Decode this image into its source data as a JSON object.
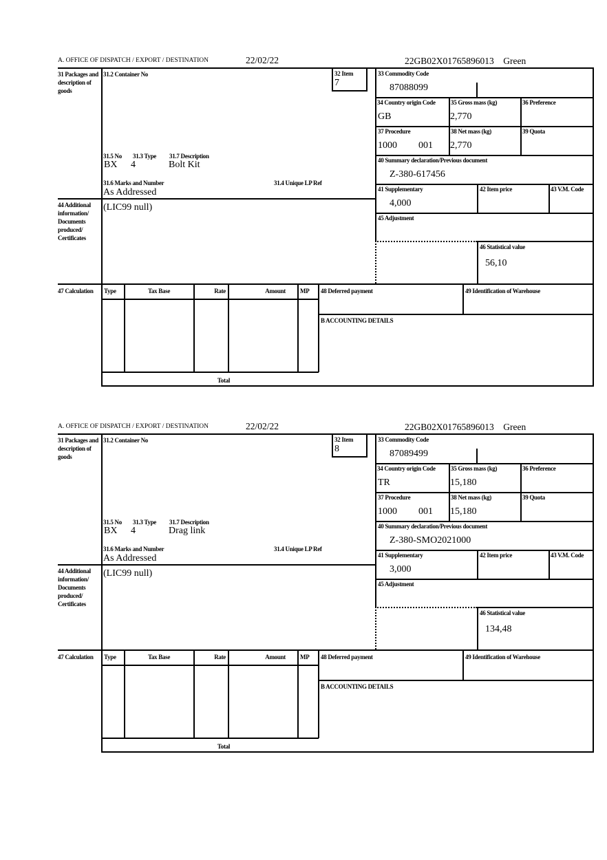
{
  "labels": {
    "office": "A.  OFFICE OF DISPATCH / EXPORT / DESTINATION",
    "l31": "31 Packages and description of goods",
    "l31_2": "31.2 Container No",
    "l32": "32 Item",
    "l33": "33 Commodity Code",
    "l34": "34 Country origin Code",
    "l35": "35 Gross mass (kg)",
    "l36": "36 Preference",
    "l37": "37 Procedure",
    "l38": "38 Net mass (kg)",
    "l39": "39 Quota",
    "l40": "40 Summary declaration/Previous document",
    "l41": "41 Supplementary",
    "l42": "42 Item price",
    "l43": "43 V.M. Code",
    "l45": "45 Adjustment",
    "l46": "46 Statistical value",
    "l31_5": "31.5 No",
    "l31_3": "31.3 Type",
    "l31_7": "31.7 Description",
    "l31_6": "31.6 Marks and Number",
    "l31_4": "31.4 Unique LP Ref",
    "l44": "44 Additional information/ Documents produced/ Certificates",
    "l47": "47 Calculation",
    "col_type": "Type",
    "col_taxbase": "Tax Base",
    "col_rate": "Rate",
    "col_amount": "Amount",
    "col_mp": "MP",
    "l48": "48 Deferred payment",
    "l49": "49 Identification of Warehouse",
    "lB": "B ACCOUNTING DETAILS",
    "total": "Total"
  },
  "forms": [
    {
      "date": "22/02/22",
      "reference": "22GB02X01765896013    Green",
      "item": "7",
      "commodity_code": "87088099",
      "country_origin": "GB",
      "gross_mass": "2,770",
      "procedure": "1000",
      "procedure_sub": "001",
      "net_mass": "2,770",
      "previous_document": "Z-380-617456",
      "supplementary": "4,000",
      "statistical_value": "56,10",
      "pkg_no": "BX",
      "pkg_type": "4",
      "description": "Bolt Kit",
      "marks": "As Addressed",
      "additional_info": "(LIC99 null)"
    },
    {
      "date": "22/02/22",
      "reference": "22GB02X01765896013    Green",
      "item": "8",
      "commodity_code": "87089499",
      "country_origin": "TR",
      "gross_mass": "15,180",
      "procedure": "1000",
      "procedure_sub": "001",
      "net_mass": "15,180",
      "previous_document": "Z-380-SMO2021000",
      "supplementary": "3,000",
      "statistical_value": "134,48",
      "pkg_no": "BX",
      "pkg_type": "4",
      "description": "Drag link",
      "marks": "As Addressed",
      "additional_info": "(LIC99 null)"
    }
  ]
}
